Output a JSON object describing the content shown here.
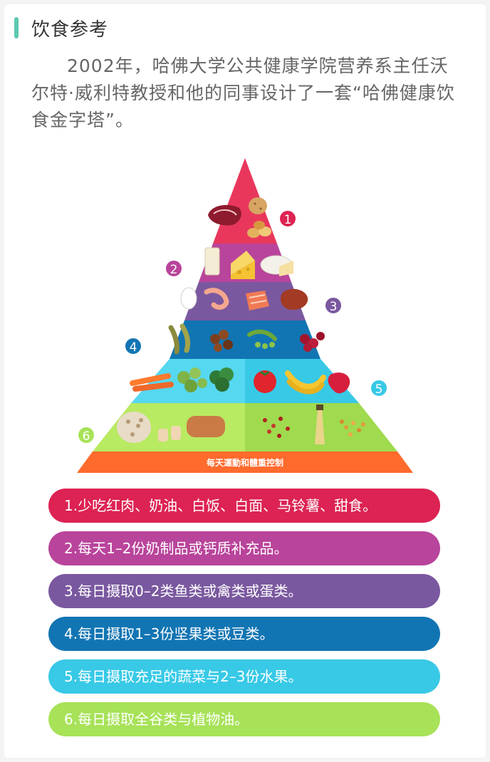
{
  "section": {
    "title": "饮食参考"
  },
  "intro": "2002年，哈佛大学公共健康学院营养系主任沃尔特·威利特教授和他的同事设计了一套“哈佛健康饮食金字塔”。",
  "pyramid": {
    "base_label": "每天運動和體重控制",
    "tier_numbers": [
      "1",
      "2",
      "3",
      "4",
      "5",
      "6"
    ],
    "foods": {
      "tier1": [
        "red-meat",
        "potato",
        "pastries"
      ],
      "tier2": [
        "milk",
        "cheese",
        "brie-cheese"
      ],
      "tier3": [
        "egg",
        "shrimp",
        "salmon",
        "chicken"
      ],
      "tier4": [
        "soybeans",
        "nuts",
        "peas",
        "cherries"
      ],
      "tier5": [
        "carrots",
        "brussels-sprouts",
        "broccoli",
        "tomato",
        "bananas",
        "strawberry"
      ],
      "tier6": [
        "beans",
        "bread",
        "dried-fruit",
        "oil-bottle",
        "cereal"
      ]
    }
  },
  "guidelines": [
    {
      "text": "1.少吃红肉、奶油、白饭、白面、马铃薯、甜食。",
      "color": "#dc2353"
    },
    {
      "text": "2.每天1–2份奶制品或钙质补充品。",
      "color": "#b9449b"
    },
    {
      "text": "3.每日摄取0–2类鱼类或禽类或蛋类。",
      "color": "#7a589f"
    },
    {
      "text": "4.每日摄取1–3份坚果类或豆类。",
      "color": "#1275b3"
    },
    {
      "text": "5.每日摄取充足的蔬菜与2–3份水果。",
      "color": "#38c9e6"
    },
    {
      "text": "6.每日摄取全谷类与植物油。",
      "color": "#a7e258"
    }
  ],
  "colors": {
    "accent": "#5cc8b0",
    "tier1": "#e9375c",
    "tier2": "#b9449b",
    "tier3": "#7a589f",
    "tier4": "#1275b3",
    "tier5": "#38c9e6",
    "tier6": "#a7e258",
    "base": "#ff6a2d"
  }
}
